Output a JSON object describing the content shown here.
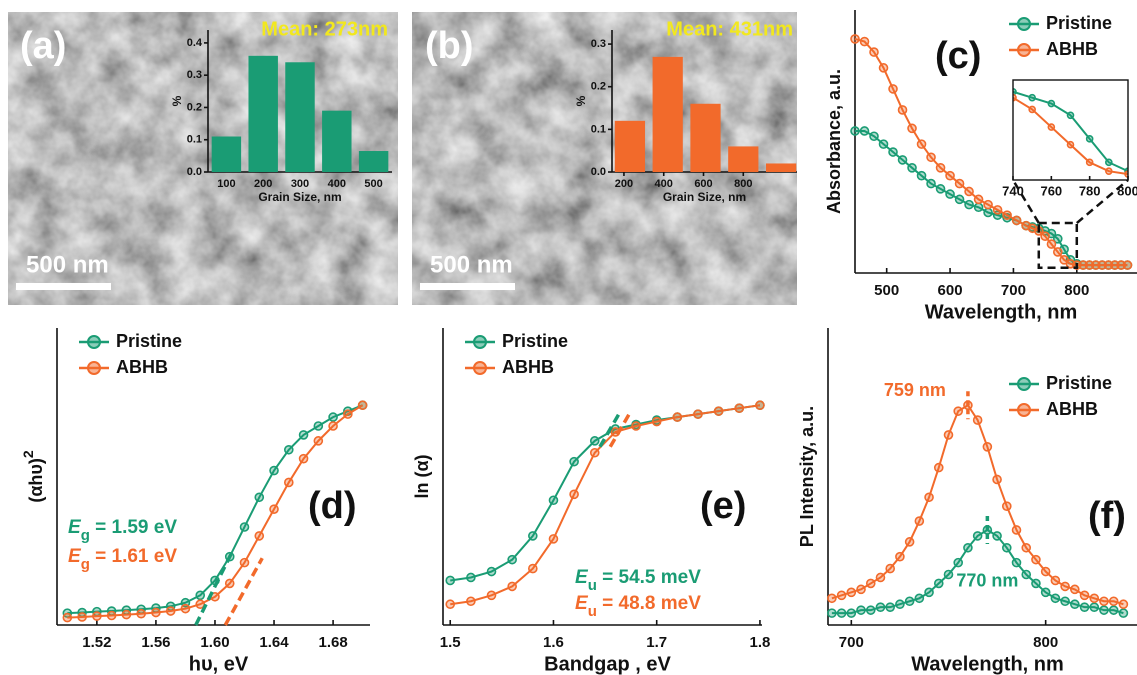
{
  "chart_data": [
    {
      "type": "bar",
      "panel_label": "(a)",
      "scale_bar": "500 nm",
      "title": "Mean: 273nm",
      "xlabel": "Grain Size, nm",
      "ylabel": "%",
      "categories": [
        "100",
        "200",
        "300",
        "400",
        "500"
      ],
      "values": [
        0.11,
        0.36,
        0.34,
        0.19,
        0.065
      ],
      "color": "#1a9c74",
      "ylim": [
        0,
        0.44
      ],
      "yticks": [
        {
          "value": 0,
          "label": "0.0"
        },
        0.1,
        0.2,
        0.3,
        0.4
      ]
    },
    {
      "type": "bar",
      "panel_label": "(b)",
      "scale_bar": "500 nm",
      "title": "Mean: 431nm",
      "xlabel": "Grain Size, nm",
      "ylabel": "%",
      "x": [
        230,
        420,
        610,
        800,
        990
      ],
      "values": [
        0.12,
        0.27,
        0.16,
        0.06,
        0.02
      ],
      "color": "#f26a2b",
      "xlim": [
        140,
        1070
      ],
      "xticks": [
        200,
        400,
        600,
        800
      ],
      "ylim": [
        0,
        0.333
      ],
      "yticks": [
        {
          "value": 0,
          "label": "0.0"
        },
        0.1,
        0.2,
        0.3
      ]
    },
    {
      "type": "line",
      "panel_label": "(c)",
      "xlabel": "Wavelength, nm",
      "ylabel": "Absorbance, a.u.",
      "legend": "upper right",
      "x": [
        450,
        465,
        480,
        495,
        510,
        525,
        540,
        555,
        570,
        585,
        600,
        615,
        630,
        645,
        660,
        675,
        690,
        705,
        720,
        730,
        740,
        750,
        760,
        770,
        780,
        790,
        800,
        810,
        820,
        830,
        840,
        850,
        860,
        870,
        880
      ],
      "series": [
        {
          "name": "Pristine",
          "color": "#1a9c74",
          "values": [
            0.54,
            0.54,
            0.52,
            0.49,
            0.46,
            0.43,
            0.4,
            0.37,
            0.34,
            0.32,
            0.3,
            0.28,
            0.26,
            0.25,
            0.23,
            0.22,
            0.21,
            0.2,
            0.18,
            0.175,
            0.17,
            0.16,
            0.15,
            0.13,
            0.09,
            0.05,
            0.035,
            0.03,
            0.03,
            0.03,
            0.03,
            0.03,
            0.03,
            0.03,
            0.03
          ]
        },
        {
          "name": "ABHB",
          "color": "#f26a2b",
          "values": [
            0.89,
            0.88,
            0.84,
            0.78,
            0.7,
            0.62,
            0.55,
            0.49,
            0.44,
            0.4,
            0.37,
            0.34,
            0.31,
            0.28,
            0.26,
            0.24,
            0.22,
            0.2,
            0.18,
            0.17,
            0.16,
            0.14,
            0.11,
            0.08,
            0.05,
            0.035,
            0.03,
            0.03,
            0.03,
            0.03,
            0.03,
            0.03,
            0.03,
            0.03,
            0.03
          ]
        }
      ],
      "xlim": [
        450,
        895
      ],
      "xticks": [
        500,
        600,
        700,
        800
      ],
      "ylim": [
        0,
        1
      ],
      "inset": {
        "xlim": [
          740,
          800
        ],
        "xticks": [
          740,
          760,
          780,
          800
        ],
        "ylim": [
          0.02,
          0.19
        ]
      }
    },
    {
      "type": "line",
      "panel_label": "(d)",
      "xlabel": "hυ, eV",
      "ylabel": "(αhυ)",
      "ylabel_sup": "2",
      "legend": "upper left",
      "x": [
        1.5,
        1.51,
        1.52,
        1.53,
        1.54,
        1.55,
        1.56,
        1.57,
        1.58,
        1.59,
        1.6,
        1.61,
        1.62,
        1.63,
        1.64,
        1.65,
        1.66,
        1.67,
        1.68,
        1.69,
        1.7
      ],
      "series": [
        {
          "name": "Pristine",
          "color": "#1a9c74",
          "values": [
            0.04,
            0.042,
            0.045,
            0.047,
            0.05,
            0.053,
            0.057,
            0.063,
            0.075,
            0.1,
            0.15,
            0.23,
            0.33,
            0.43,
            0.52,
            0.59,
            0.64,
            0.67,
            0.7,
            0.72,
            0.74
          ],
          "fit": {
            "x": [
              1.587,
              1.612
            ],
            "y": [
              0,
              0.25
            ]
          }
        },
        {
          "name": "ABHB",
          "color": "#f26a2b",
          "values": [
            0.025,
            0.027,
            0.03,
            0.032,
            0.035,
            0.038,
            0.042,
            0.047,
            0.055,
            0.07,
            0.095,
            0.14,
            0.21,
            0.3,
            0.39,
            0.48,
            0.56,
            0.62,
            0.67,
            0.71,
            0.74
          ],
          "fit": {
            "x": [
              1.607,
              1.632
            ],
            "y": [
              0,
              0.225
            ]
          }
        }
      ],
      "annotations": [
        {
          "symbol": "E",
          "sub": "g",
          "text": " = 1.59 eV"
        },
        {
          "symbol": "E",
          "sub": "g",
          "text": " = 1.61 eV"
        }
      ],
      "xlim": [
        1.493,
        1.705
      ],
      "xticks": [
        1.52,
        1.56,
        {
          "value": 1.6,
          "label": "1.60"
        },
        1.64,
        1.68
      ],
      "ylim": [
        0,
        1
      ]
    },
    {
      "type": "line",
      "panel_label": "(e)",
      "xlabel": "Bandgap , eV",
      "ylabel": "ln (α)",
      "legend": "upper left",
      "x": [
        1.5,
        1.52,
        1.54,
        1.56,
        1.58,
        1.6,
        1.62,
        1.64,
        1.66,
        1.68,
        1.7,
        1.72,
        1.74,
        1.76,
        1.78,
        1.8
      ],
      "series": [
        {
          "name": "Pristine",
          "color": "#1a9c74",
          "values": [
            0.15,
            0.16,
            0.18,
            0.22,
            0.3,
            0.42,
            0.55,
            0.62,
            0.66,
            0.675,
            0.69,
            0.7,
            0.71,
            0.72,
            0.73,
            0.74
          ],
          "fit": {
            "x": [
              1.645,
              1.665
            ],
            "y": [
              0.6,
              0.72
            ]
          }
        },
        {
          "name": "ABHB",
          "color": "#f26a2b",
          "values": [
            0.07,
            0.08,
            0.1,
            0.13,
            0.19,
            0.29,
            0.44,
            0.58,
            0.65,
            0.67,
            0.685,
            0.7,
            0.71,
            0.72,
            0.73,
            0.74
          ],
          "fit": {
            "x": [
              1.655,
              1.675
            ],
            "y": [
              0.6,
              0.72
            ]
          }
        }
      ],
      "annotations": [
        {
          "symbol": "E",
          "sub": "u",
          "text": " = 54.5 meV"
        },
        {
          "symbol": "E",
          "sub": "u",
          "text": " = 48.8 meV"
        }
      ],
      "xlim": [
        1.493,
        1.802
      ],
      "xticks": [
        1.5,
        1.6,
        1.7,
        1.8
      ],
      "ylim": [
        0,
        1
      ]
    },
    {
      "type": "line",
      "panel_label": "(f)",
      "xlabel": "Wavelength, nm",
      "ylabel": "PL Intensity, a.u.",
      "legend": "upper right",
      "x": [
        690,
        695,
        700,
        705,
        710,
        715,
        720,
        725,
        730,
        735,
        740,
        745,
        750,
        755,
        760,
        765,
        770,
        775,
        780,
        785,
        790,
        795,
        800,
        805,
        810,
        815,
        820,
        825,
        830,
        835,
        840
      ],
      "series": [
        {
          "name": "Pristine",
          "color": "#1a9c74",
          "peak_label": "770 nm",
          "values": [
            0.04,
            0.04,
            0.04,
            0.05,
            0.05,
            0.06,
            0.06,
            0.07,
            0.08,
            0.09,
            0.11,
            0.14,
            0.17,
            0.21,
            0.26,
            0.3,
            0.32,
            0.3,
            0.26,
            0.21,
            0.17,
            0.14,
            0.11,
            0.09,
            0.08,
            0.07,
            0.06,
            0.06,
            0.05,
            0.05,
            0.04
          ]
        },
        {
          "name": "ABHB",
          "color": "#f26a2b",
          "peak_label": "759 nm",
          "values": [
            0.09,
            0.1,
            0.11,
            0.12,
            0.14,
            0.16,
            0.19,
            0.23,
            0.28,
            0.35,
            0.43,
            0.53,
            0.64,
            0.72,
            0.74,
            0.69,
            0.6,
            0.49,
            0.4,
            0.32,
            0.26,
            0.22,
            0.18,
            0.15,
            0.13,
            0.12,
            0.1,
            0.09,
            0.08,
            0.08,
            0.07
          ]
        }
      ],
      "xlim": [
        688,
        847
      ],
      "xticks": [
        700,
        800
      ],
      "ylim": [
        0,
        1
      ]
    }
  ]
}
